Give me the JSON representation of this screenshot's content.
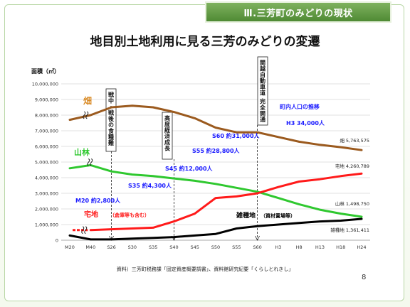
{
  "section_tab": "Ⅲ.三芳町のみどりの現状",
  "page_title": "地目別土地利用に見る三芳のみどりの変遷",
  "footnote": "資料）三芳町税務課「固定資産概要調書」、資料館研究紀要「くらしとれきし」",
  "page_number": "8",
  "chart_data": {
    "type": "line",
    "ylabel": "面積（㎡）",
    "xlabel": "",
    "ylim": [
      0,
      10000000
    ],
    "yticks": [
      0,
      1000000,
      2000000,
      3000000,
      4000000,
      5000000,
      6000000,
      7000000,
      8000000,
      9000000,
      10000000
    ],
    "ytick_labels": [
      "0",
      "1,000,000",
      "2,000,000",
      "3,000,000",
      "4,000,000",
      "5,000,000",
      "6,000,000",
      "7,000,000",
      "8,000,000",
      "9,000,000",
      "10,000,000"
    ],
    "categories": [
      "M20",
      "M40",
      "S26",
      "S30",
      "S35",
      "S40",
      "S45",
      "S50",
      "S55",
      "S60",
      "H3",
      "H8",
      "H13",
      "H18",
      "H24"
    ],
    "grid": true,
    "series": [
      {
        "name": "畑",
        "color": "#9b5a1e",
        "values": [
          7700000,
          8000000,
          8500000,
          8600000,
          8500000,
          8200000,
          7800000,
          7200000,
          6900000,
          6900000,
          6600000,
          6300000,
          6100000,
          5950000,
          5763575
        ]
      },
      {
        "name": "山林",
        "color": "#2fc82f",
        "values": [
          4600000,
          4800000,
          4400000,
          4200000,
          4100000,
          3950000,
          3800000,
          3600000,
          3350000,
          3100000,
          2700000,
          2300000,
          1950000,
          1700000,
          1498750
        ]
      },
      {
        "name": "宅地",
        "color": "#ff1a1a",
        "values": [
          null,
          650000,
          700000,
          750000,
          800000,
          1200000,
          1700000,
          2700000,
          2800000,
          3000000,
          3400000,
          3750000,
          3900000,
          4100000,
          4260789
        ]
      },
      {
        "name": "雑種地",
        "color": "#000000",
        "values": [
          300000,
          50000,
          50000,
          100000,
          150000,
          200000,
          300000,
          400000,
          750000,
          900000,
          1000000,
          1100000,
          1200000,
          1250000,
          1361411
        ]
      }
    ],
    "series_labels": [
      {
        "text": "畑",
        "series": 0,
        "color": "#d98a24"
      },
      {
        "text": "山林",
        "series": 1,
        "color": "#2fc82f"
      },
      {
        "text": "宅地",
        "series": 2,
        "color": "#ff1a1a"
      },
      {
        "text": "（倉庫等も含む）",
        "series": 2,
        "color": "#ff1a1a"
      },
      {
        "text": "雑種地",
        "series": 3,
        "color": "#000000"
      },
      {
        "text": "（資材置場等）",
        "series": 3,
        "color": "#000000"
      }
    ],
    "end_labels": [
      "畑 5,763,575",
      "宅地 4,260,789",
      "山林 1,498,750",
      "雑種地 1,361,411"
    ],
    "event_boxes": [
      {
        "text": "戦中・戦後の食糧難",
        "at": "S26"
      },
      {
        "text": "高度経済成長",
        "at": "S40"
      },
      {
        "text": "関越自動車道 完全開通",
        "at": "S60"
      }
    ],
    "population_title": "町内人口の推移",
    "population_labels": [
      "M20 約2,800人",
      "S35 約4,300人",
      "S45 約12,000人",
      "S55 約28,800人",
      "S60 約31,000人",
      "H3 34,000人"
    ]
  }
}
